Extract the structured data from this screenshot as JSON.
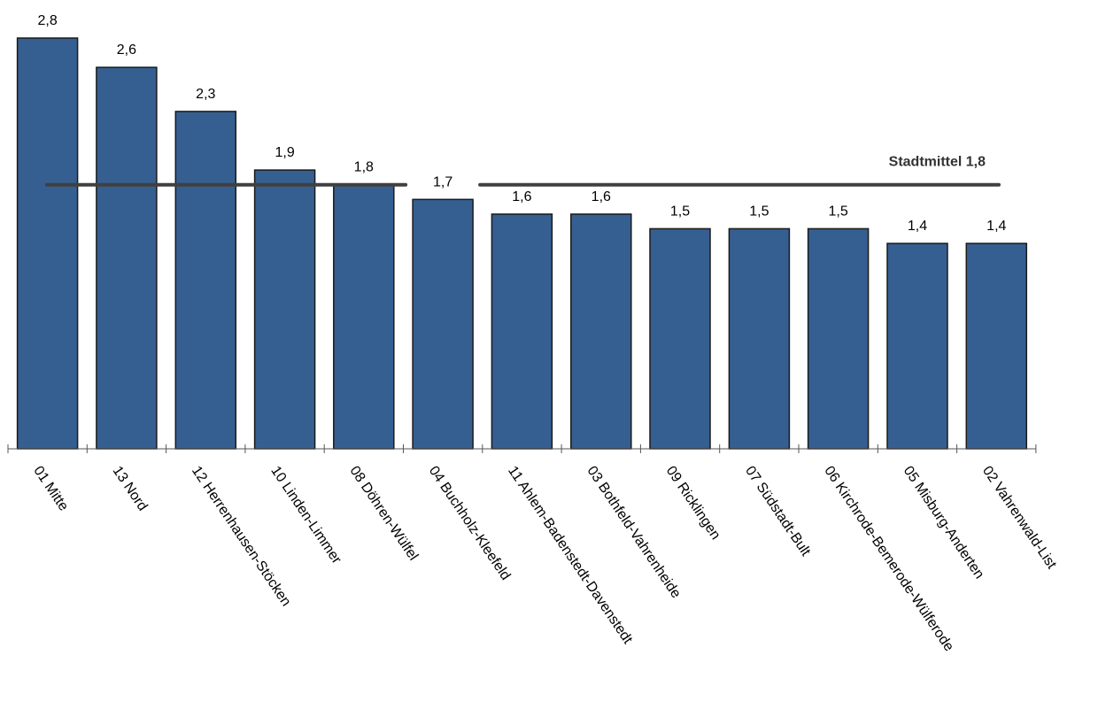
{
  "chart_data": {
    "type": "bar",
    "categories": [
      "01 Mitte",
      "13 Nord",
      "12 Herrenhausen-Stöcken",
      "10 Linden-Limmer",
      "08 Döhren-Wülfel",
      "04 Buchholz-Kleefeld",
      "11 Ahlem-Badenstedt-Davenstedt",
      "03 Bothfeld-Vahrenheide",
      "09 Ricklingen",
      "07 Südstadt-Bult",
      "06 Kirchrode-Bemerode-Wülferode",
      "05 Misburg-Anderten",
      "02 Vahrenwald-List"
    ],
    "values": [
      2.8,
      2.6,
      2.3,
      1.9,
      1.8,
      1.7,
      1.6,
      1.6,
      1.5,
      1.5,
      1.5,
      1.4,
      1.4
    ],
    "value_labels": [
      "2,8",
      "2,6",
      "2,3",
      "1,9",
      "1,8",
      "1,7",
      "1,6",
      "1,6",
      "1,5",
      "1,5",
      "1,5",
      "1,4",
      "1,4"
    ],
    "reference_line": {
      "label": "Stadtmittel 1,8",
      "value": 1.8
    },
    "ylim": [
      0,
      2.8
    ],
    "grid": false,
    "legend": "none",
    "title": "",
    "xlabel": "",
    "ylabel": "",
    "colors": {
      "bar": "#365f91",
      "bar_border": "#1a1a1a",
      "reference_line": "#404040"
    }
  }
}
